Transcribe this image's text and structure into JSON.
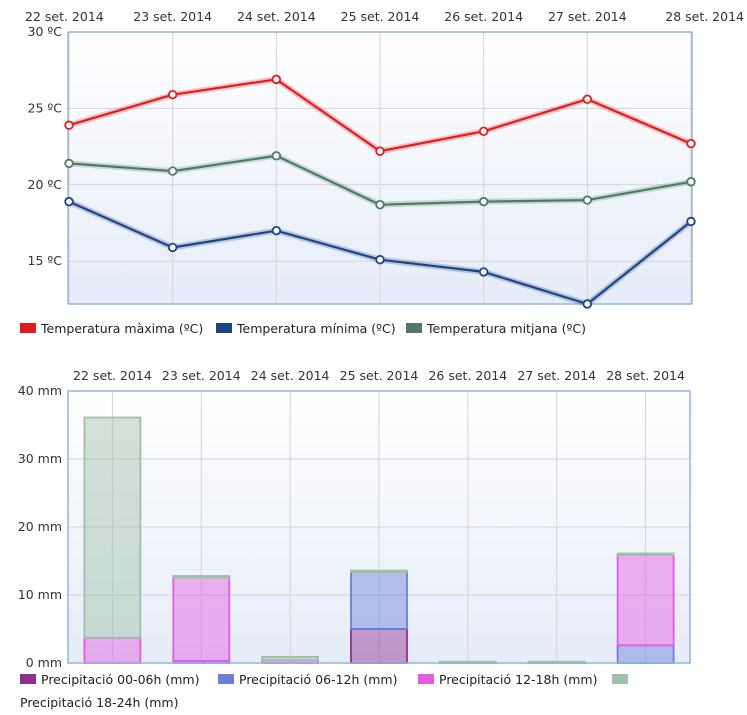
{
  "chart_data": [
    {
      "type": "line",
      "categories": [
        "22 set. 2014",
        "23 set. 2014",
        "24 set. 2014",
        "25 set. 2014",
        "26 set. 2014",
        "27 set. 2014",
        "28 set. 2014"
      ],
      "y_tick_labels": [
        "30 ºC",
        "25 ºC",
        "20 ºC",
        "15 ºC"
      ],
      "y_ticks": [
        30,
        25,
        20,
        15
      ],
      "ylim": [
        12.2,
        30
      ],
      "grid": true,
      "legend_position": "bottom-left",
      "series": [
        {
          "name": "Temperatura màxima (ºC)",
          "color": "#e01e1e",
          "values": [
            23.9,
            25.9,
            26.9,
            22.2,
            23.5,
            25.6,
            22.7
          ]
        },
        {
          "name": "Temperatura mínima (ºC)",
          "color": "#1c4587",
          "values": [
            18.9,
            15.9,
            17.0,
            15.1,
            14.3,
            12.2,
            17.6
          ]
        },
        {
          "name": "Temperatura mitjana (ºC)",
          "color": "#4f7a6a",
          "values": [
            21.4,
            20.9,
            21.9,
            18.7,
            18.9,
            19.0,
            20.2
          ]
        }
      ]
    },
    {
      "type": "bar",
      "stacked": true,
      "categories": [
        "22 set. 2014",
        "23 set. 2014",
        "24 set. 2014",
        "25 set. 2014",
        "26 set. 2014",
        "27 set. 2014",
        "28 set. 2014"
      ],
      "y_tick_labels": [
        "40 mm",
        "30 mm",
        "20 mm",
        "10 mm",
        "0 mm"
      ],
      "y_ticks": [
        40,
        30,
        20,
        10,
        0
      ],
      "ylim": [
        0,
        40
      ],
      "grid": true,
      "legend_position": "bottom-left",
      "series": [
        {
          "name": "Precipitació 00-06h (mm)",
          "color": "#8e2f92",
          "values": [
            0,
            0,
            0,
            5.0,
            0,
            0,
            0
          ]
        },
        {
          "name": "Precipitació 06-12h (mm)",
          "color": "#6a80d8",
          "values": [
            0,
            0.3,
            0,
            8.4,
            0,
            0,
            2.6
          ]
        },
        {
          "name": "Precipitació 12-18h (mm)",
          "color": "#e35ce3",
          "values": [
            3.7,
            12.3,
            0.4,
            0,
            0,
            0,
            13.3
          ]
        },
        {
          "name": "Precipitació 18-24h (mm)",
          "color": "#9fbfa8",
          "values": [
            32.4,
            0.2,
            0.5,
            0.2,
            0.2,
            0.2,
            0.2
          ]
        }
      ]
    }
  ]
}
